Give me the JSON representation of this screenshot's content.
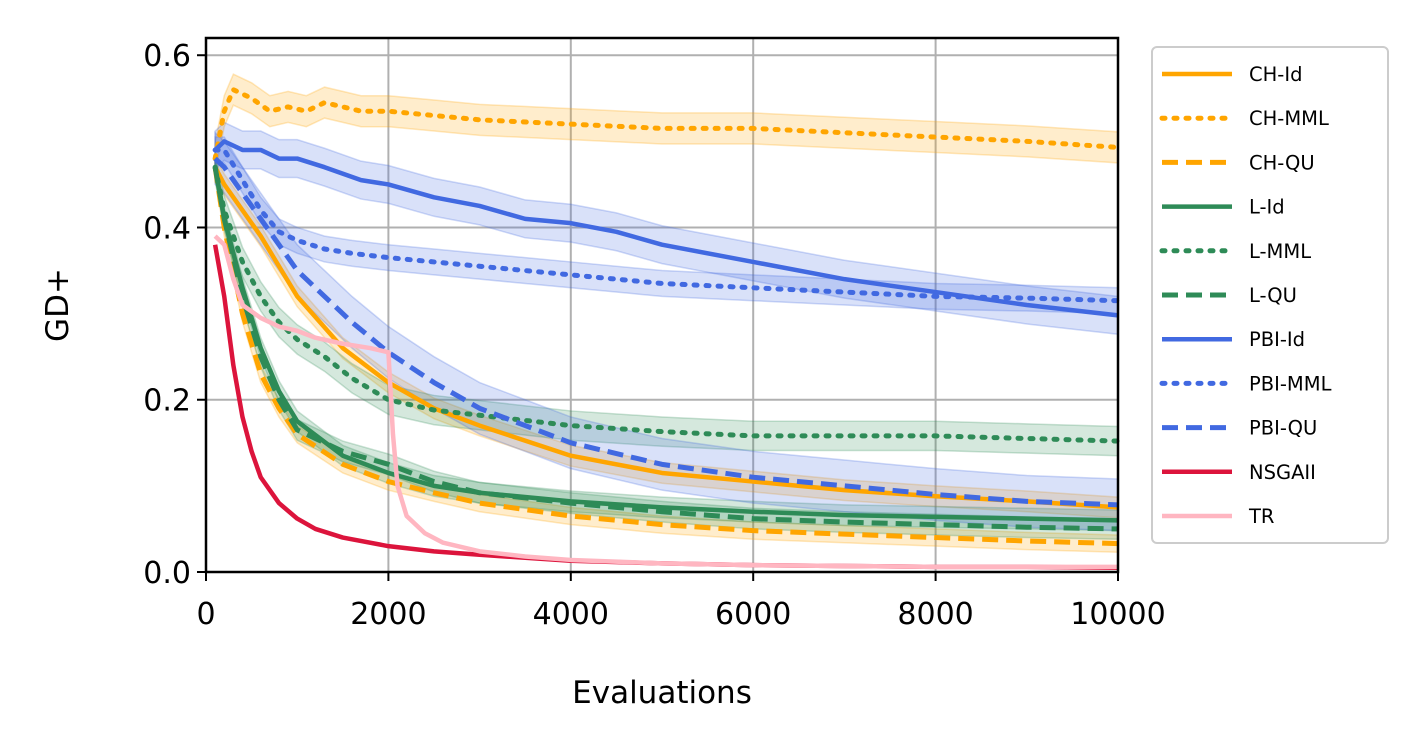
{
  "chart_data": {
    "type": "line",
    "title": "",
    "xlabel": "Evaluations",
    "ylabel": "GD+",
    "xlim": [
      0,
      10000
    ],
    "ylim": [
      0,
      0.62
    ],
    "xticks": [
      0,
      2000,
      4000,
      6000,
      8000,
      10000
    ],
    "xtick_labels": [
      "0",
      "2000",
      "4000",
      "6000",
      "8000",
      "10000"
    ],
    "yticks": [
      0.0,
      0.2,
      0.4,
      0.6
    ],
    "ytick_labels": [
      "0.0",
      "0.2",
      "0.4",
      "0.6"
    ],
    "grid": true,
    "legend_position": "outside-right",
    "series": [
      {
        "name": "CH-Id",
        "color": "#FFA500",
        "style": "solid",
        "x": [
          100,
          200,
          400,
          600,
          800,
          1000,
          1500,
          2000,
          2500,
          3000,
          4000,
          5000,
          6000,
          7000,
          8000,
          9000,
          10000
        ],
        "y": [
          0.47,
          0.45,
          0.42,
          0.39,
          0.355,
          0.32,
          0.26,
          0.22,
          0.19,
          0.17,
          0.135,
          0.115,
          0.105,
          0.095,
          0.088,
          0.082,
          0.075
        ],
        "band": 0.012
      },
      {
        "name": "CH-MML",
        "color": "#FFA500",
        "style": "dotted",
        "x": [
          100,
          200,
          300,
          500,
          700,
          900,
          1100,
          1300,
          1500,
          1700,
          2000,
          2500,
          3000,
          4000,
          5000,
          6000,
          7000,
          8000,
          9000,
          10000
        ],
        "y": [
          0.48,
          0.535,
          0.56,
          0.55,
          0.535,
          0.54,
          0.535,
          0.545,
          0.54,
          0.535,
          0.535,
          0.53,
          0.525,
          0.52,
          0.515,
          0.515,
          0.51,
          0.505,
          0.5,
          0.493
        ],
        "band": 0.018
      },
      {
        "name": "CH-QU",
        "color": "#FFA500",
        "style": "dashed",
        "x": [
          100,
          200,
          400,
          600,
          800,
          1000,
          1500,
          2000,
          2500,
          3000,
          4000,
          5000,
          6000,
          7000,
          8000,
          9000,
          10000
        ],
        "y": [
          0.47,
          0.4,
          0.3,
          0.23,
          0.19,
          0.16,
          0.125,
          0.105,
          0.092,
          0.08,
          0.065,
          0.055,
          0.048,
          0.044,
          0.04,
          0.036,
          0.033
        ],
        "band": 0.01
      },
      {
        "name": "L-Id",
        "color": "#2E8B57",
        "style": "solid",
        "x": [
          100,
          200,
          400,
          600,
          800,
          1000,
          1500,
          2000,
          2500,
          3000,
          4000,
          5000,
          6000,
          7000,
          8000,
          9000,
          10000
        ],
        "y": [
          0.47,
          0.41,
          0.33,
          0.26,
          0.21,
          0.175,
          0.135,
          0.115,
          0.1,
          0.092,
          0.082,
          0.075,
          0.07,
          0.066,
          0.064,
          0.062,
          0.06
        ],
        "band": 0.012
      },
      {
        "name": "L-MML",
        "color": "#2E8B57",
        "style": "dotted",
        "x": [
          100,
          200,
          400,
          600,
          800,
          1000,
          1300,
          1600,
          2000,
          2500,
          3000,
          4000,
          5000,
          6000,
          7000,
          8000,
          9000,
          10000
        ],
        "y": [
          0.47,
          0.42,
          0.36,
          0.32,
          0.29,
          0.27,
          0.25,
          0.225,
          0.2,
          0.188,
          0.182,
          0.17,
          0.163,
          0.158,
          0.158,
          0.158,
          0.155,
          0.152
        ],
        "band": 0.017
      },
      {
        "name": "L-QU",
        "color": "#2E8B57",
        "style": "dashed",
        "x": [
          100,
          200,
          400,
          600,
          800,
          1000,
          1500,
          2000,
          2500,
          3000,
          4000,
          5000,
          6000,
          7000,
          8000,
          9000,
          10000
        ],
        "y": [
          0.47,
          0.41,
          0.32,
          0.25,
          0.2,
          0.165,
          0.14,
          0.125,
          0.105,
          0.092,
          0.08,
          0.07,
          0.062,
          0.058,
          0.055,
          0.052,
          0.05
        ],
        "band": 0.012
      },
      {
        "name": "PBI-Id",
        "color": "#4169E1",
        "style": "solid",
        "x": [
          100,
          200,
          400,
          600,
          800,
          1000,
          1300,
          1700,
          2000,
          2500,
          3000,
          3500,
          4000,
          4500,
          5000,
          6000,
          7000,
          8000,
          9000,
          10000
        ],
        "y": [
          0.49,
          0.5,
          0.49,
          0.49,
          0.48,
          0.48,
          0.47,
          0.455,
          0.45,
          0.435,
          0.425,
          0.41,
          0.405,
          0.395,
          0.38,
          0.36,
          0.34,
          0.325,
          0.31,
          0.298
        ],
        "band": 0.022
      },
      {
        "name": "PBI-MML",
        "color": "#4169E1",
        "style": "dotted",
        "x": [
          100,
          200,
          400,
          600,
          800,
          1000,
          1300,
          1600,
          2000,
          2500,
          3000,
          3500,
          4000,
          5000,
          6000,
          7000,
          8000,
          9000,
          10000
        ],
        "y": [
          0.49,
          0.49,
          0.455,
          0.42,
          0.395,
          0.385,
          0.375,
          0.37,
          0.365,
          0.36,
          0.355,
          0.35,
          0.345,
          0.335,
          0.33,
          0.325,
          0.32,
          0.318,
          0.315
        ],
        "band": 0.015
      },
      {
        "name": "PBI-QU",
        "color": "#4169E1",
        "style": "dashed",
        "x": [
          100,
          200,
          400,
          600,
          800,
          1000,
          1300,
          1600,
          2000,
          2500,
          3000,
          3500,
          4000,
          5000,
          6000,
          7000,
          8000,
          9000,
          10000
        ],
        "y": [
          0.48,
          0.47,
          0.44,
          0.41,
          0.38,
          0.35,
          0.32,
          0.29,
          0.255,
          0.22,
          0.19,
          0.17,
          0.15,
          0.125,
          0.11,
          0.1,
          0.09,
          0.082,
          0.078
        ],
        "band": 0.03
      },
      {
        "name": "NSGAII",
        "color": "#DC143C",
        "style": "solid",
        "x": [
          100,
          200,
          300,
          400,
          500,
          600,
          800,
          1000,
          1200,
          1500,
          2000,
          2500,
          3000,
          4000,
          5000,
          6000,
          7000,
          8000,
          9000,
          10000
        ],
        "y": [
          0.38,
          0.32,
          0.24,
          0.18,
          0.14,
          0.11,
          0.08,
          0.062,
          0.05,
          0.04,
          0.03,
          0.024,
          0.02,
          0.013,
          0.01,
          0.008,
          0.007,
          0.006,
          0.006,
          0.005
        ],
        "band": 0
      },
      {
        "name": "TR",
        "color": "#FFB6C1",
        "style": "solid",
        "x": [
          100,
          200,
          300,
          400,
          600,
          800,
          1000,
          1200,
          1500,
          1800,
          2000,
          2050,
          2100,
          2200,
          2400,
          2600,
          3000,
          3500,
          4000,
          5000,
          6000,
          7000,
          8000,
          9000,
          10000
        ],
        "y": [
          0.39,
          0.38,
          0.34,
          0.31,
          0.295,
          0.285,
          0.28,
          0.272,
          0.265,
          0.26,
          0.255,
          0.16,
          0.1,
          0.065,
          0.045,
          0.034,
          0.024,
          0.018,
          0.014,
          0.01,
          0.008,
          0.007,
          0.006,
          0.006,
          0.006
        ],
        "band": 0
      }
    ]
  }
}
